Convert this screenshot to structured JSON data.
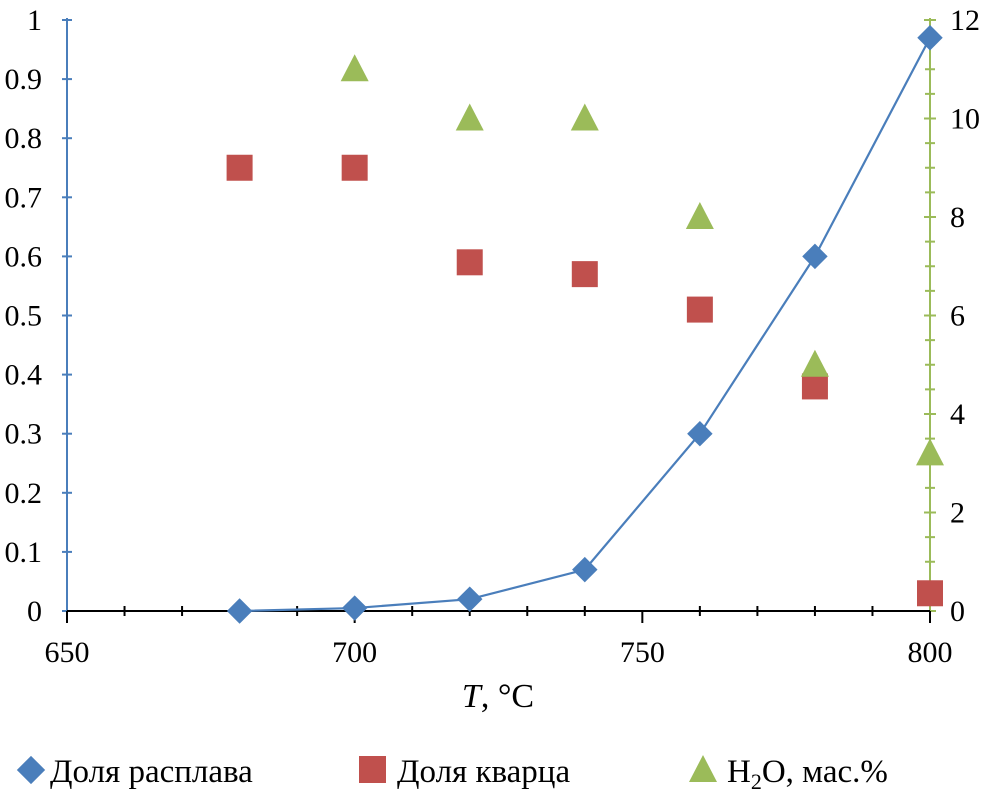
{
  "chart_data": {
    "type": "scatter",
    "xlabel": {
      "italic": "T",
      "rest": ", °C"
    },
    "xlim": [
      650,
      800
    ],
    "x_ticks": [
      "650",
      "700",
      "750",
      "800"
    ],
    "ylim_left": [
      0,
      1
    ],
    "y_left_ticks": [
      "0",
      "0.1",
      "0.2",
      "0.3",
      "0.4",
      "0.5",
      "0.6",
      "0.7",
      "0.8",
      "0.9",
      "1"
    ],
    "ylim_right": [
      0,
      12
    ],
    "y_right_ticks": [
      "0",
      "2",
      "4",
      "6",
      "8",
      "10",
      "12"
    ],
    "grid": false,
    "legend_position": "bottom",
    "colors": {
      "melt": "#4a7ebb",
      "quartz": "#c0504d",
      "water": "#9bbb59",
      "left_axis": "#4a7ebb",
      "right_axis": "#9bbb59"
    },
    "series": [
      {
        "name": "Доля расплава",
        "marker": "diamond",
        "axis": "left",
        "connected": true,
        "x": [
          680,
          700,
          720,
          740,
          760,
          780,
          800
        ],
        "y": [
          0,
          0.005,
          0.02,
          0.07,
          0.3,
          0.6,
          0.97
        ]
      },
      {
        "name": "Доля кварца",
        "marker": "square",
        "axis": "left",
        "connected": false,
        "x": [
          680,
          700,
          720,
          740,
          760,
          780,
          800
        ],
        "y": [
          0.75,
          0.75,
          0.59,
          0.57,
          0.51,
          0.38,
          0.03
        ]
      },
      {
        "name": "H₂O, мас.%",
        "legend_parts": [
          "H",
          "2",
          "O, мас.%"
        ],
        "marker": "triangle",
        "axis": "right",
        "connected": false,
        "x": [
          700,
          720,
          740,
          760,
          780,
          800
        ],
        "y": [
          11,
          10,
          10,
          8,
          5,
          3.2
        ]
      }
    ]
  }
}
